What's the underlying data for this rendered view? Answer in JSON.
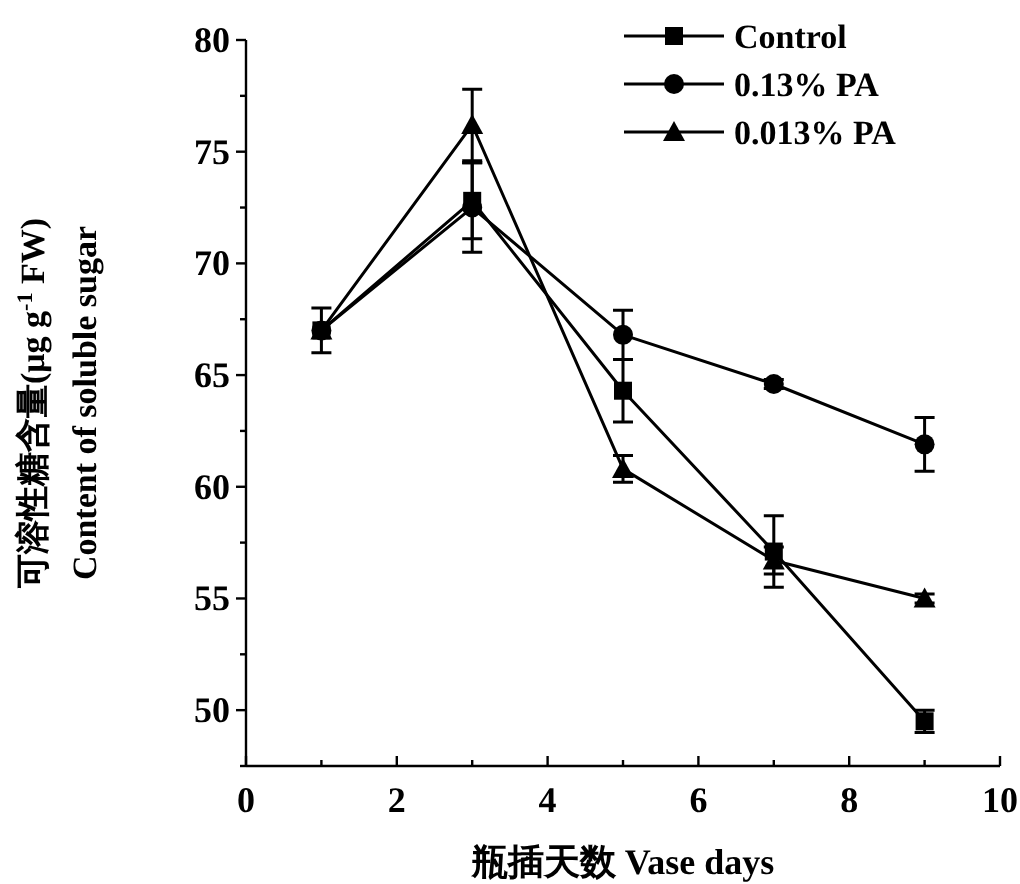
{
  "chart_data": {
    "type": "line",
    "xlabel": "瓶插天数 Vase days",
    "ylabel": "可溶性糖含量(μg g$^{-1}$ FW)\nContent of soluble sugar",
    "x": [
      1,
      3,
      5,
      7,
      9
    ],
    "xlim": [
      0,
      10
    ],
    "ylim": [
      47.5,
      80
    ],
    "xticks": [
      0,
      {
        "value": 1,
        "label": null
      },
      2,
      {
        "value": 3,
        "label": null
      },
      4,
      {
        "value": 5,
        "label": null
      },
      6,
      {
        "value": 7,
        "label": null
      },
      8,
      {
        "value": 9,
        "label": null
      },
      10
    ],
    "yticks": [
      {
        "value": 47.5,
        "label": null
      },
      50,
      {
        "value": 52.5,
        "label": null
      },
      55,
      {
        "value": 57.5,
        "label": null
      },
      60,
      {
        "value": 62.5,
        "label": null
      },
      65,
      {
        "value": 67.5,
        "label": null
      },
      70,
      {
        "value": 72.5,
        "label": null
      },
      75,
      {
        "value": 77.5,
        "label": null
      },
      80
    ],
    "legend": "top right",
    "grid": false,
    "line_style": "solid",
    "series": [
      {
        "name": "Control",
        "color": "#000000",
        "marker": "square",
        "values": [
          67,
          72.8,
          64.3,
          57.1,
          49.5
        ],
        "errors": [
          1,
          1.7,
          1.4,
          1.6,
          0.5
        ]
      },
      {
        "name": "0.13% PA",
        "color": "#000000",
        "marker": "circle",
        "values": [
          67,
          72.5,
          66.8,
          64.6,
          61.9
        ],
        "errors": [
          null,
          2,
          1.1,
          0.2,
          1.2
        ]
      },
      {
        "name": "0.013% PA",
        "color": "#000000",
        "marker": "triangle",
        "values": [
          67,
          76.2,
          60.8,
          56.7,
          55
        ],
        "errors": [
          null,
          1.6,
          0.6,
          0.6,
          0.2
        ]
      }
    ]
  }
}
